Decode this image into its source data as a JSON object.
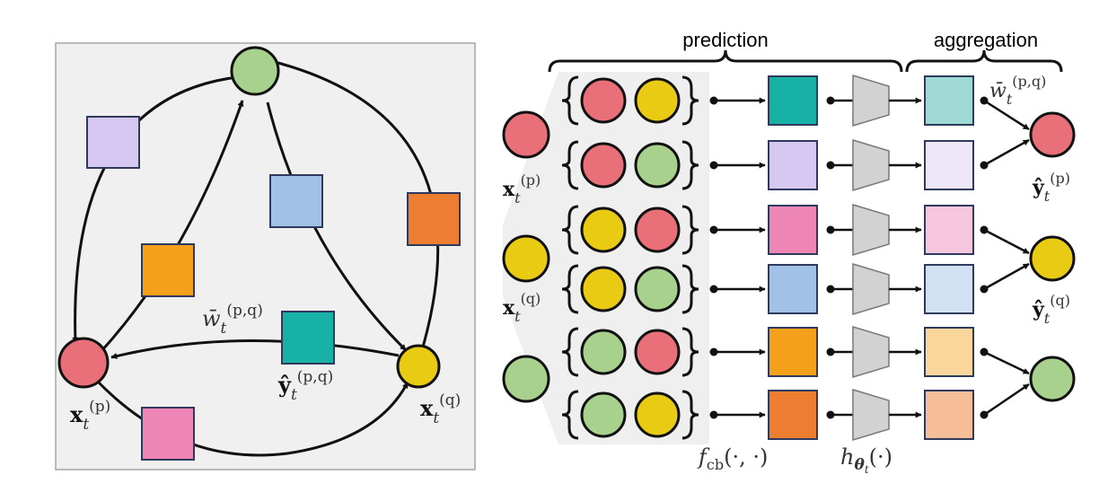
{
  "labels": {
    "prediction": "prediction",
    "aggregation": "aggregation",
    "weight": {
      "base": "w̄",
      "sub": "t",
      "sup": "(p,q)"
    },
    "pair_pred": {
      "base": "ŷ",
      "sub": "t",
      "sup": "(p,q)"
    },
    "x_p": {
      "base": "x",
      "sub": "t",
      "sup": "(p)"
    },
    "x_q": {
      "base": "x",
      "sub": "t",
      "sup": "(q)"
    },
    "y_p": {
      "base": "ŷ",
      "sub": "t",
      "sup": "(p)"
    },
    "y_q": {
      "base": "ŷ",
      "sub": "t",
      "sup": "(q)"
    },
    "f_cb": "f_cb(·,·)",
    "f_cb_parts": {
      "base": "f",
      "sub": "cb",
      "args": "(·, ·)"
    },
    "h_theta": "h_θt(·)",
    "h_parts": {
      "base": "h",
      "sub": "θ",
      "subsub": "t",
      "args": "(·)"
    }
  },
  "colors": {
    "red": "#E96F78",
    "yellow": "#EACB13",
    "green": "#A9D18E",
    "teal": "#17B2A5",
    "lavender": "#D6C8F0",
    "pink": "#EE86B5",
    "blue": "#A1C2E6",
    "orange_deep": "#F4A01A",
    "orange_red": "#ED7D31",
    "teal_light": "#9ED9D4",
    "lavender_light": "#EDE7F8",
    "pink_light": "#F6C6DC",
    "blue_light": "#D1E1F3",
    "peach_light": "#FBD69C",
    "salmon_light": "#F6BE98",
    "trapezoid_gray": "#D2D2D2",
    "panel_gray": "#F0F0F0"
  },
  "rows": [
    {
      "pair": [
        "red",
        "yellow"
      ],
      "pred": "teal",
      "agg": "teal_light"
    },
    {
      "pair": [
        "red",
        "green"
      ],
      "pred": "lavender",
      "agg": "lavender_light"
    },
    {
      "pair": [
        "yellow",
        "red"
      ],
      "pred": "pink",
      "agg": "pink_light"
    },
    {
      "pair": [
        "yellow",
        "green"
      ],
      "pred": "blue",
      "agg": "blue_light"
    },
    {
      "pair": [
        "green",
        "red"
      ],
      "pred": "orange_deep",
      "agg": "peach_light"
    },
    {
      "pair": [
        "green",
        "yellow"
      ],
      "pred": "orange_red",
      "agg": "salmon_light"
    }
  ]
}
